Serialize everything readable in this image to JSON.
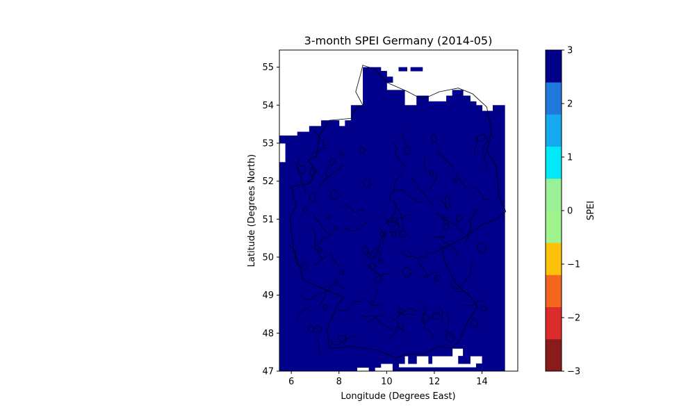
{
  "chart_data": {
    "type": "heatmap",
    "title": "3-month SPEI Germany (2014-05)",
    "xlabel": "Longitude (Degrees East)",
    "ylabel": "Latitude (Degrees North)",
    "xlim": [
      5.5,
      15.5
    ],
    "ylim": [
      47.0,
      55.45
    ],
    "xticks": [
      6,
      8,
      10,
      12,
      14
    ],
    "yticks": [
      47,
      48,
      49,
      50,
      51,
      52,
      53,
      54,
      55
    ],
    "grid": false,
    "value_note": "All valid grid cells at the colorbar maximum (SPEI ≈ 3)",
    "cell_value": 3,
    "grid_resolution_deg": 0.25,
    "land_mask_rows": [
      {
        "lat_min": 54.9,
        "lat_max": 55.0,
        "lon_ranges": [
          [
            9.0,
            9.75
          ]
        ]
      },
      {
        "lat_min": 54.9,
        "lat_max": 55.0,
        "lon_ranges": [
          [
            10.5,
            10.85
          ],
          [
            11.0,
            11.5
          ]
        ]
      },
      {
        "lat_min": 54.75,
        "lat_max": 54.9,
        "lon_ranges": [
          [
            9.0,
            10.0
          ]
        ]
      },
      {
        "lat_min": 54.6,
        "lat_max": 54.75,
        "lon_ranges": [
          [
            9.0,
            10.25
          ]
        ]
      },
      {
        "lat_min": 54.4,
        "lat_max": 54.6,
        "lon_ranges": [
          [
            9.0,
            10.0
          ]
        ]
      },
      {
        "lat_min": 54.25,
        "lat_max": 54.4,
        "lon_ranges": [
          [
            9.0,
            10.75
          ],
          [
            12.75,
            13.2
          ]
        ]
      },
      {
        "lat_min": 54.1,
        "lat_max": 54.25,
        "lon_ranges": [
          [
            9.0,
            10.75
          ],
          [
            11.25,
            11.75
          ],
          [
            12.5,
            13.5
          ]
        ]
      },
      {
        "lat_min": 54.0,
        "lat_max": 54.1,
        "lon_ranges": [
          [
            9.0,
            10.75
          ],
          [
            11.25,
            12.0
          ],
          [
            12.0,
            13.75
          ]
        ]
      },
      {
        "lat_min": 53.85,
        "lat_max": 54.0,
        "lon_ranges": [
          [
            8.5,
            14.0
          ],
          [
            14.45,
            14.95
          ]
        ]
      },
      {
        "lat_min": 53.6,
        "lat_max": 53.85,
        "lon_ranges": [
          [
            8.5,
            14.95
          ]
        ]
      },
      {
        "lat_min": 53.45,
        "lat_max": 53.6,
        "lon_ranges": [
          [
            7.25,
            8.0
          ],
          [
            8.25,
            14.95
          ]
        ]
      },
      {
        "lat_min": 53.3,
        "lat_max": 53.45,
        "lon_ranges": [
          [
            6.75,
            14.95
          ]
        ]
      },
      {
        "lat_min": 53.2,
        "lat_max": 53.3,
        "lon_ranges": [
          [
            6.25,
            14.95
          ]
        ]
      },
      {
        "lat_min": 53.0,
        "lat_max": 53.2,
        "lon_ranges": [
          [
            5.5,
            14.95
          ]
        ]
      },
      {
        "lat_min": 52.5,
        "lat_max": 53.0,
        "lon_ranges": [
          [
            5.75,
            14.95
          ]
        ]
      },
      {
        "lat_min": 47.6,
        "lat_max": 52.5,
        "lon_ranges": [
          [
            5.5,
            14.95
          ]
        ]
      },
      {
        "lat_min": 47.4,
        "lat_max": 47.6,
        "lon_ranges": [
          [
            5.5,
            12.75
          ],
          [
            13.2,
            14.95
          ]
        ]
      },
      {
        "lat_min": 47.2,
        "lat_max": 47.4,
        "lon_ranges": [
          [
            5.5,
            10.75
          ],
          [
            10.9,
            11.25
          ],
          [
            11.75,
            11.9
          ],
          [
            13.0,
            13.5
          ],
          [
            14.0,
            14.95
          ]
        ]
      },
      {
        "lat_min": 47.1,
        "lat_max": 47.2,
        "lon_ranges": [
          [
            5.5,
            9.75
          ],
          [
            10.25,
            10.5
          ],
          [
            13.75,
            14.95
          ]
        ]
      },
      {
        "lat_min": 47.0,
        "lat_max": 47.1,
        "lon_ranges": [
          [
            5.5,
            8.75
          ],
          [
            9.25,
            9.5
          ],
          [
            10.25,
            14.95
          ]
        ]
      }
    ],
    "colorbar": {
      "label": "SPEI",
      "range": [
        -3,
        3
      ],
      "ticks": [
        -3,
        -2,
        -1,
        0,
        1,
        2,
        3
      ],
      "tick_labels": [
        "−3",
        "−2",
        "−1",
        "0",
        "1",
        "2",
        "3"
      ],
      "bins": [
        {
          "from": -3.0,
          "to": -2.4,
          "color": "#8b1a1a"
        },
        {
          "from": -2.4,
          "to": -1.8,
          "color": "#dd2c2c"
        },
        {
          "from": -1.8,
          "to": -1.2,
          "color": "#f4661e"
        },
        {
          "from": -1.2,
          "to": -0.6,
          "color": "#fdc109"
        },
        {
          "from": -0.6,
          "to": 0.0,
          "color": "#a0f48e"
        },
        {
          "from": 0.0,
          "to": 0.6,
          "color": "#99f095"
        },
        {
          "from": 0.6,
          "to": 1.2,
          "color": "#01e8f8"
        },
        {
          "from": 1.2,
          "to": 1.8,
          "color": "#17a9f0"
        },
        {
          "from": 1.8,
          "to": 2.4,
          "color": "#1f78dc"
        },
        {
          "from": 2.4,
          "to": 3.0,
          "color": "#00008b"
        }
      ]
    },
    "map_fill_color": "#00008b",
    "border_color": "#000000"
  }
}
